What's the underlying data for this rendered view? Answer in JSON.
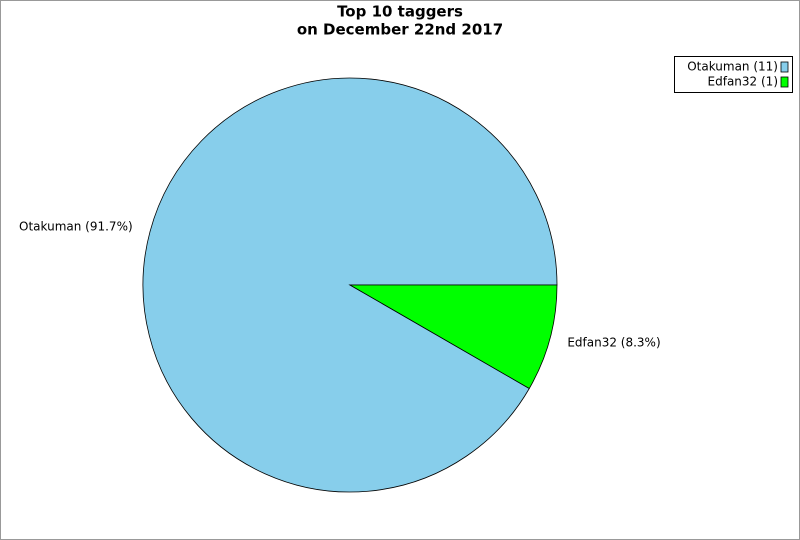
{
  "chart_data": {
    "type": "pie",
    "title": "Top 10 taggers",
    "subtitle": "on December 22nd 2017",
    "categories": [
      "Otakuman",
      "Edfan32"
    ],
    "values": [
      11,
      1
    ],
    "colors": [
      "#87ceeb",
      "#00ff00"
    ],
    "slice_labels": [
      "Otakuman (91.7%)",
      "Edfan32 (8.3%)"
    ],
    "legend_labels": [
      "Otakuman (11)",
      "Edfan32 (1)"
    ],
    "legend": "top-right"
  }
}
